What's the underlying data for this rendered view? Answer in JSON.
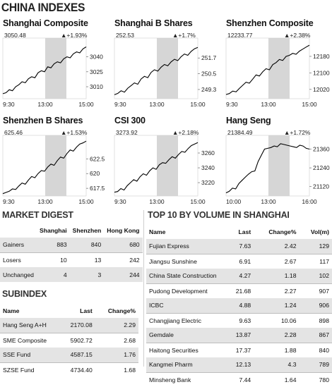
{
  "title": "CHINA INDEXES",
  "chart_data": [
    {
      "type": "line",
      "title": "Shanghai Composite",
      "last": "3050.48",
      "change": "+1.93%",
      "x_ticks": [
        "9:30",
        "13:00",
        "15:00"
      ],
      "y_ticks": [
        3040,
        3025,
        3010
      ],
      "ylim": [
        2998,
        3056
      ],
      "values": [
        3003,
        3004,
        3007,
        3006,
        3010,
        3012,
        3015,
        3014,
        3018,
        3020,
        3019,
        3024,
        3026,
        3025,
        3030,
        3029,
        3033,
        3035,
        3034,
        3038,
        3040,
        3039,
        3043,
        3045,
        3044,
        3048,
        3050
      ]
    },
    {
      "type": "line",
      "title": "Shanghai B Shares",
      "last": "252.53",
      "change": "+1.7%",
      "x_ticks": [
        "9:30",
        "13:00",
        "15:00"
      ],
      "y_ticks": [
        251.7,
        250.5,
        249.3
      ],
      "ylim": [
        248.6,
        253.0
      ],
      "values": [
        248.9,
        249.0,
        249.2,
        249.1,
        249.4,
        249.6,
        249.8,
        249.7,
        250.1,
        250.3,
        250.2,
        250.6,
        250.8,
        250.7,
        251.0,
        251.2,
        251.1,
        251.4,
        251.6,
        251.5,
        251.8,
        252.0,
        251.9,
        252.2,
        252.4,
        252.5
      ]
    },
    {
      "type": "line",
      "title": "Shenzhen Composite",
      "last": "12233.77",
      "change": "+2.38%",
      "x_ticks": [
        "9:30",
        "13:00",
        "15:00"
      ],
      "y_ticks": [
        12180,
        12100,
        12020
      ],
      "ylim": [
        11975,
        12255
      ],
      "values": [
        11995,
        12000,
        12012,
        12008,
        12025,
        12040,
        12055,
        12050,
        12070,
        12090,
        12085,
        12105,
        12120,
        12115,
        12140,
        12150,
        12165,
        12160,
        12180,
        12185,
        12195,
        12190,
        12205,
        12215,
        12225,
        12234
      ]
    },
    {
      "type": "line",
      "title": "Shenzhen B Shares",
      "last": "625.46",
      "change": "+1.53%",
      "x_ticks": [
        "9:30",
        "13:00",
        "15:00"
      ],
      "y_ticks": [
        622.5,
        620,
        617.5
      ],
      "ylim": [
        616.2,
        626.0
      ],
      "values": [
        616.6,
        616.8,
        617.0,
        617.4,
        617.3,
        617.9,
        618.4,
        618.2,
        618.9,
        619.5,
        619.3,
        620.0,
        620.5,
        620.4,
        621.1,
        621.6,
        621.4,
        622.2,
        622.8,
        622.6,
        623.4,
        624.0,
        623.8,
        624.5,
        625.0,
        625.2,
        625.5
      ]
    },
    {
      "type": "line",
      "title": "CSI 300",
      "last": "3273.92",
      "change": "+2.18%",
      "x_ticks": [
        "9:30",
        "13:00",
        "15:00"
      ],
      "y_ticks": [
        3260,
        3240,
        3220
      ],
      "ylim": [
        3202,
        3280
      ],
      "values": [
        3207,
        3208,
        3212,
        3210,
        3216,
        3220,
        3224,
        3222,
        3228,
        3232,
        3230,
        3236,
        3240,
        3238,
        3244,
        3247,
        3246,
        3251,
        3255,
        3253,
        3258,
        3262,
        3261,
        3266,
        3270,
        3272,
        3274
      ]
    },
    {
      "type": "line",
      "title": "Hang Seng",
      "last": "21384.49",
      "change": "+1.72%",
      "x_ticks": [
        "10:00",
        "13:00",
        "16:00"
      ],
      "y_ticks": [
        21360,
        21240,
        21120
      ],
      "ylim": [
        21060,
        21430
      ],
      "values": [
        21080,
        21090,
        21110,
        21105,
        21140,
        21160,
        21180,
        21200,
        21215,
        21220,
        21280,
        21320,
        21360,
        21365,
        21370,
        21380,
        21375,
        21395,
        21390,
        21385,
        21380,
        21375,
        21370,
        21385,
        21380,
        21365,
        21360
      ]
    }
  ],
  "market_digest": {
    "title": "MARKET DIGEST",
    "headers": [
      "",
      "Shanghai",
      "Shenzhen",
      "Hong Kong"
    ],
    "rows": [
      [
        "Gainers",
        "883",
        "840",
        "680"
      ],
      [
        "Losers",
        "10",
        "13",
        "242"
      ],
      [
        "Unchanged",
        "4",
        "3",
        "244"
      ]
    ]
  },
  "subindex": {
    "title": "SUBINDEX",
    "headers": [
      "Name",
      "Last",
      "Change%"
    ],
    "rows": [
      [
        "Hang Seng A+H",
        "2170.08",
        "2.29"
      ],
      [
        "SME Composite",
        "5902.72",
        "2.68"
      ],
      [
        "SSE Fund",
        "4587.15",
        "1.76"
      ],
      [
        "SZSE Fund",
        "4734.40",
        "1.68"
      ]
    ]
  },
  "top10": {
    "title": "TOP 10 BY VOLUME IN SHANGHAI",
    "headers": [
      "Name",
      "Last",
      "Change%",
      "Vol(m)"
    ],
    "rows": [
      [
        "Fujian Express",
        "7.63",
        "2.42",
        "129"
      ],
      [
        "Jiangsu Sunshine",
        "6.91",
        "2.67",
        "117"
      ],
      [
        "China State Construction",
        "4.27",
        "1.18",
        "102"
      ],
      [
        "Pudong Development",
        "21.68",
        "2.27",
        "907"
      ],
      [
        "ICBC",
        "4.88",
        "1.24",
        "906"
      ],
      [
        "Changjiang Electric",
        "9.63",
        "10.06",
        "898"
      ],
      [
        "Gemdale",
        "13.87",
        "2.28",
        "867"
      ],
      [
        "Haitong Securities",
        "17.37",
        "1.88",
        "840"
      ],
      [
        "Kangmei Pharm",
        "12.13",
        "4.3",
        "789"
      ],
      [
        "Minsheng Bank",
        "7.44",
        "1.64",
        "780"
      ]
    ]
  },
  "colors": {
    "shade": "#e4e4e4",
    "line": "#000000",
    "band": "#d6d6d6"
  }
}
